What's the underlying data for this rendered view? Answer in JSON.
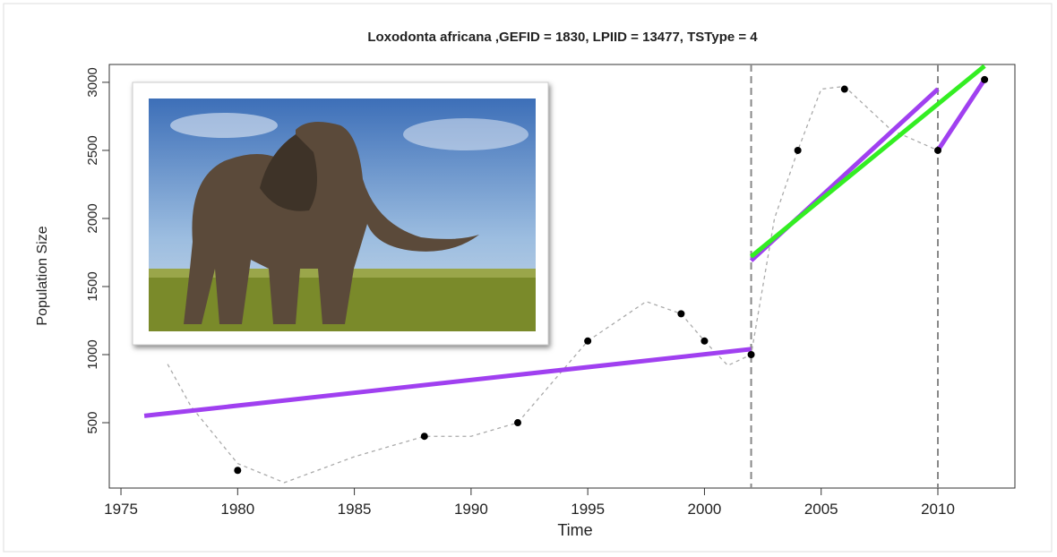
{
  "chart_data": {
    "type": "scatter",
    "title": "Loxodonta africana ,GEFID = 1830, LPIID = 13477, TSType = 4",
    "xlabel": "Time",
    "ylabel": "Population Size",
    "xlim": [
      1974.5,
      2013.3
    ],
    "ylim": [
      20,
      3131
    ],
    "xticks": [
      1975,
      1980,
      1985,
      1990,
      1995,
      2000,
      2005,
      2010
    ],
    "yticks": [
      500,
      1000,
      1500,
      2000,
      2500,
      3000
    ],
    "vlines": [
      2002,
      2010
    ],
    "series": [
      {
        "type": "curve",
        "color": "#aaaaaa",
        "x": [
          1977,
          1978,
          1980,
          1982,
          1985,
          1988,
          1990,
          1992,
          1995,
          1997.5,
          1999,
          2000,
          2001,
          2002,
          2003,
          2004,
          2005,
          2006,
          2008,
          2010,
          2012
        ],
        "values": [
          930,
          620,
          200,
          60,
          250,
          400,
          400,
          500,
          1100,
          1390,
          1300,
          1100,
          920,
          1000,
          2000,
          2500,
          2950,
          2970,
          2650,
          2500,
          3020
        ]
      },
      {
        "type": "line",
        "color": "#a040f0",
        "x": [
          1976,
          2002
        ],
        "values": [
          550,
          1040
        ]
      },
      {
        "type": "line",
        "color": "#a040f0",
        "x": [
          2002,
          2010
        ],
        "values": [
          1690,
          2950
        ]
      },
      {
        "type": "line",
        "color": "#33ee22",
        "x": [
          2002,
          2012
        ],
        "values": [
          1720,
          3120
        ]
      },
      {
        "type": "line",
        "color": "#a040f0",
        "x": [
          2010,
          2012
        ],
        "values": [
          2500,
          3020
        ]
      },
      {
        "type": "scatter",
        "color": "#000000",
        "x": [
          1980,
          1988,
          1992,
          1995,
          1999,
          2000,
          2002,
          2004,
          2006,
          2010,
          2012
        ],
        "values": [
          150,
          400,
          500,
          1100,
          1300,
          1100,
          1000,
          2500,
          2950,
          2500,
          3020
        ]
      }
    ]
  }
}
